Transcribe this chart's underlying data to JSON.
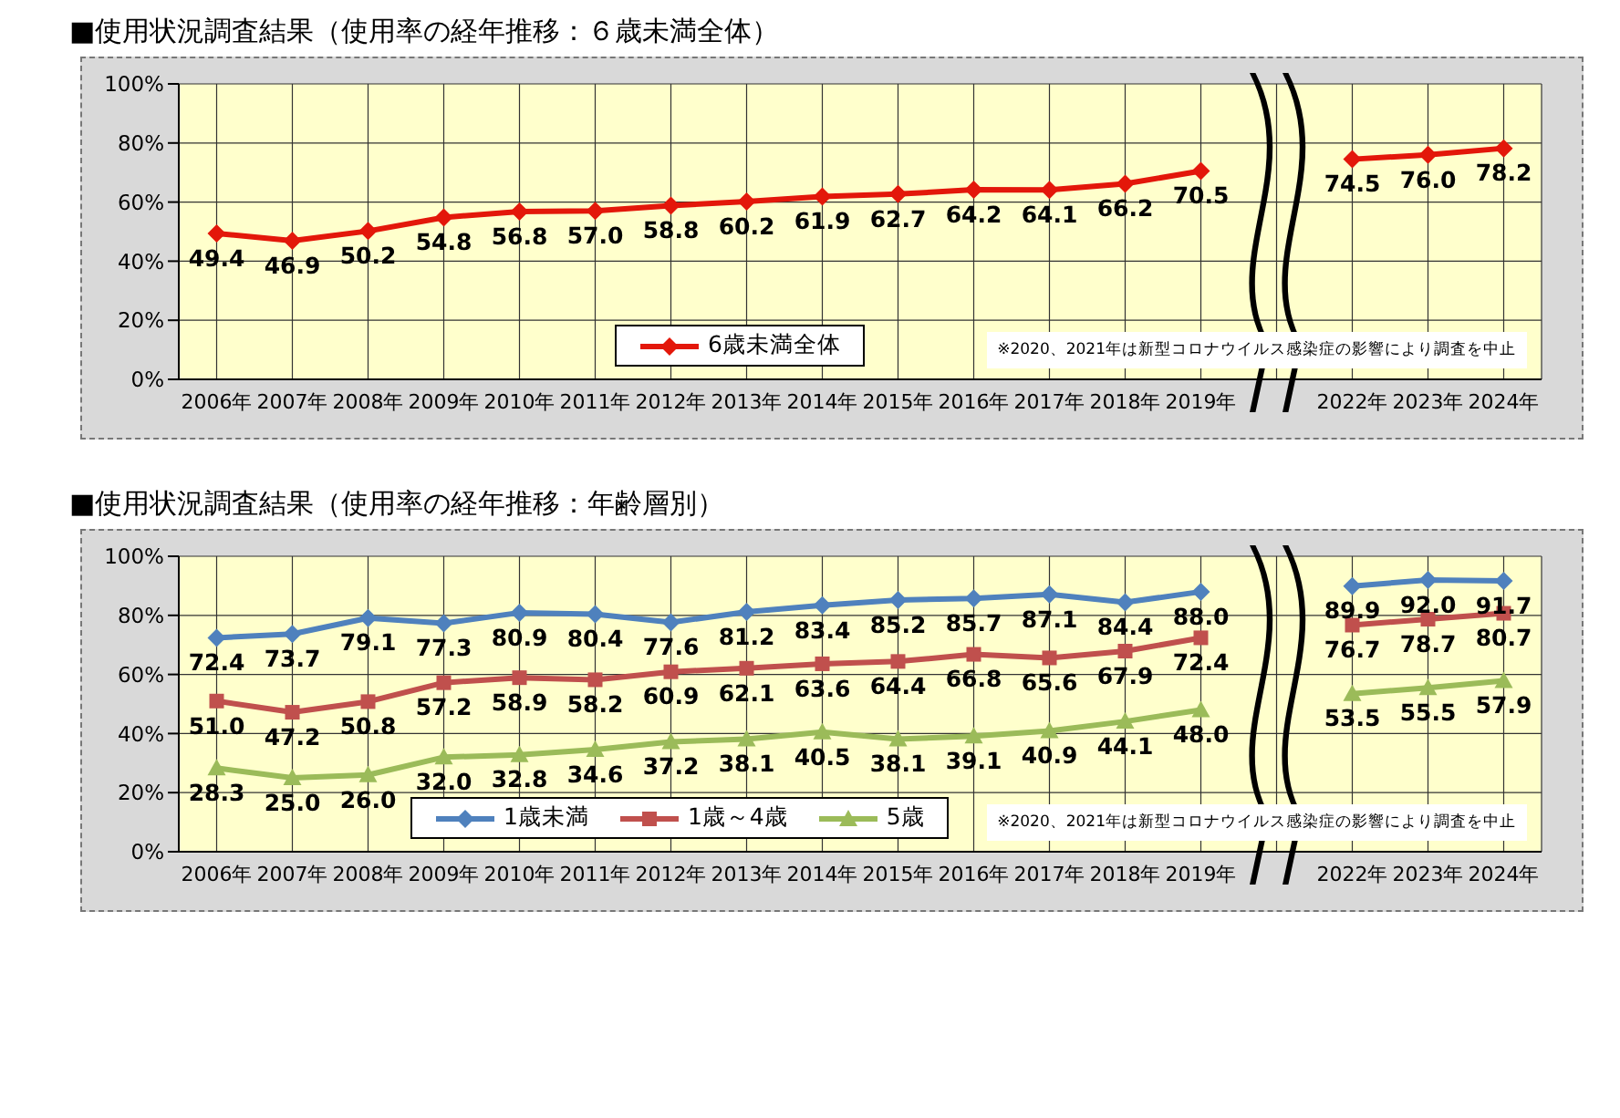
{
  "chart_data": [
    {
      "type": "line",
      "title": "■使用状況調査結果（使用率の経年推移：６歳未満全体）",
      "categories": [
        "2006年",
        "2007年",
        "2008年",
        "2009年",
        "2010年",
        "2011年",
        "2012年",
        "2013年",
        "2014年",
        "2015年",
        "2016年",
        "2017年",
        "2018年",
        "2019年",
        null,
        "2022年",
        "2023年",
        "2024年"
      ],
      "series": [
        {
          "name": "6歳未満全体",
          "color": "#e3170a",
          "marker": "diamond",
          "values": [
            49.4,
            46.9,
            50.2,
            54.8,
            56.8,
            57.0,
            58.8,
            60.2,
            61.9,
            62.7,
            64.2,
            64.1,
            66.2,
            70.5,
            null,
            74.5,
            76.0,
            78.2
          ],
          "value_labels": [
            "49.4",
            "46.9",
            "50.2",
            "54.8",
            "56.8",
            "57.0",
            "58.8",
            "60.2",
            "61.9",
            "62.7",
            "64.2",
            "64.1",
            "66.2",
            "70.5",
            null,
            "74.5",
            "76.0",
            "78.2"
          ]
        }
      ],
      "ylim": [
        0,
        100
      ],
      "yticks": [
        {
          "value": 0,
          "label": "0%"
        },
        {
          "value": 20,
          "label": "20%"
        },
        {
          "value": 40,
          "label": "40%"
        },
        {
          "value": 60,
          "label": "60%"
        },
        {
          "value": 80,
          "label": "80%"
        },
        {
          "value": 100,
          "label": "100%"
        }
      ],
      "grid": true,
      "legend": "bottom",
      "annotations": [
        "※2020、2021年は新型コロナウイルス感染症の影響により調査を中止"
      ]
    },
    {
      "type": "line",
      "title": "■使用状況調査結果（使用率の経年推移：年齢層別）",
      "categories": [
        "2006年",
        "2007年",
        "2008年",
        "2009年",
        "2010年",
        "2011年",
        "2012年",
        "2013年",
        "2014年",
        "2015年",
        "2016年",
        "2017年",
        "2018年",
        "2019年",
        null,
        "2022年",
        "2023年",
        "2024年"
      ],
      "series": [
        {
          "name": "1歳未満",
          "color": "#4f81bd",
          "marker": "diamond",
          "values": [
            72.4,
            73.7,
            79.1,
            77.3,
            80.9,
            80.4,
            77.6,
            81.2,
            83.4,
            85.2,
            85.7,
            87.1,
            84.4,
            88.0,
            null,
            89.9,
            92.0,
            91.7
          ],
          "value_labels": [
            "72.4",
            "73.7",
            "79.1",
            "77.3",
            "80.9",
            "80.4",
            "77.6",
            "81.2",
            "83.4",
            "85.2",
            "85.7",
            "87.1",
            "84.4",
            "88.0",
            null,
            "89.9",
            "92.0",
            "91.7"
          ]
        },
        {
          "name": "1歳～4歳",
          "color": "#c0504d",
          "marker": "square",
          "values": [
            51.0,
            47.2,
            50.8,
            57.2,
            58.9,
            58.2,
            60.9,
            62.1,
            63.6,
            64.4,
            66.8,
            65.6,
            67.9,
            72.4,
            null,
            76.7,
            78.7,
            80.7
          ],
          "value_labels": [
            "51.0",
            "47.2",
            "50.8",
            "57.2",
            "58.9",
            "58.2",
            "60.9",
            "62.1",
            "63.6",
            "64.4",
            "66.8",
            "65.6",
            "67.9",
            "72.4",
            null,
            "76.7",
            "78.7",
            "80.7"
          ]
        },
        {
          "name": "5歳",
          "color": "#9bbb59",
          "marker": "triangle",
          "values": [
            28.3,
            25.0,
            26.0,
            32.0,
            32.8,
            34.6,
            37.2,
            38.1,
            40.5,
            38.1,
            39.1,
            40.9,
            44.1,
            48.0,
            null,
            53.5,
            55.5,
            57.9
          ],
          "value_labels": [
            "28.3",
            "25.0",
            "26.0",
            "32.0",
            "32.8",
            "34.6",
            "37.2",
            "38.1",
            "40.5",
            "38.1",
            "39.1",
            "40.9",
            "44.1",
            "48.0",
            null,
            "53.5",
            "55.5",
            "57.9"
          ]
        }
      ],
      "ylim": [
        0,
        100
      ],
      "yticks": [
        {
          "value": 0,
          "label": "0%"
        },
        {
          "value": 20,
          "label": "20%"
        },
        {
          "value": 40,
          "label": "40%"
        },
        {
          "value": 60,
          "label": "60%"
        },
        {
          "value": 80,
          "label": "80%"
        },
        {
          "value": 100,
          "label": "100%"
        }
      ],
      "grid": true,
      "legend": "bottom",
      "annotations": [
        "※2020、2021年は新型コロナウイルス感染症の影響により調査を中止"
      ]
    }
  ]
}
